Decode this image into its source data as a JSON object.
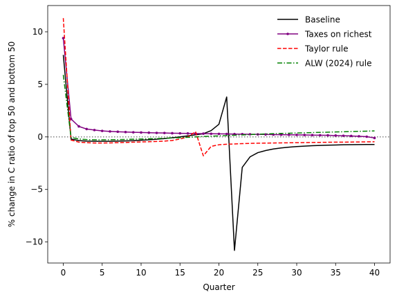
{
  "chart_data": {
    "type": "line",
    "title": "",
    "xlabel": "Quarter",
    "ylabel": "% change in C ratio of top 50 and bottom 50",
    "xlim": [
      -2,
      42
    ],
    "ylim": [
      -12,
      12.5
    ],
    "xticks": [
      0,
      5,
      10,
      15,
      20,
      25,
      30,
      35,
      40
    ],
    "yticks": [
      -10,
      -5,
      0,
      5,
      10
    ],
    "reference_line": {
      "y": 0,
      "style": "dotted",
      "color": "#808080"
    },
    "grid": false,
    "legend": {
      "position": "top-right",
      "frame": false
    },
    "series": [
      {
        "name": "Baseline",
        "color": "#000000",
        "dash": "solid",
        "marker": "none",
        "x": [
          0,
          1,
          2,
          3,
          4,
          5,
          6,
          7,
          8,
          9,
          10,
          11,
          12,
          13,
          14,
          15,
          16,
          17,
          18,
          19,
          20,
          21,
          22,
          23,
          24,
          25,
          26,
          27,
          28,
          29,
          30,
          31,
          32,
          33,
          34,
          35,
          36,
          37,
          38,
          39,
          40
        ],
        "y": [
          7.8,
          -0.2,
          -0.35,
          -0.4,
          -0.42,
          -0.42,
          -0.42,
          -0.4,
          -0.38,
          -0.36,
          -0.32,
          -0.28,
          -0.22,
          -0.16,
          -0.08,
          0.0,
          0.1,
          0.2,
          0.3,
          0.6,
          1.2,
          3.8,
          -10.8,
          -2.9,
          -1.9,
          -1.5,
          -1.3,
          -1.15,
          -1.05,
          -0.98,
          -0.92,
          -0.88,
          -0.84,
          -0.81,
          -0.79,
          -0.77,
          -0.75,
          -0.74,
          -0.73,
          -0.72,
          -0.72
        ]
      },
      {
        "name": "Taxes on richest",
        "color": "#800080",
        "dash": "solid",
        "marker": "dot",
        "x": [
          0,
          1,
          2,
          3,
          4,
          5,
          6,
          7,
          8,
          9,
          10,
          11,
          12,
          13,
          14,
          15,
          16,
          17,
          18,
          19,
          20,
          21,
          22,
          23,
          24,
          25,
          26,
          27,
          28,
          29,
          30,
          31,
          32,
          33,
          34,
          35,
          36,
          37,
          38,
          39,
          40
        ],
        "y": [
          9.4,
          1.7,
          1.0,
          0.75,
          0.65,
          0.57,
          0.52,
          0.49,
          0.46,
          0.44,
          0.42,
          0.4,
          0.38,
          0.37,
          0.35,
          0.34,
          0.33,
          0.32,
          0.31,
          0.3,
          0.29,
          0.28,
          0.27,
          0.26,
          0.25,
          0.24,
          0.23,
          0.22,
          0.21,
          0.2,
          0.19,
          0.18,
          0.17,
          0.16,
          0.15,
          0.13,
          0.11,
          0.09,
          0.06,
          0.02,
          -0.1
        ]
      },
      {
        "name": "Taylor rule",
        "color": "#ff0000",
        "dash": "dashed",
        "marker": "none",
        "x": [
          0,
          1,
          2,
          3,
          4,
          5,
          6,
          7,
          8,
          9,
          10,
          11,
          12,
          13,
          14,
          15,
          16,
          17,
          18,
          19,
          20,
          21,
          22,
          23,
          24,
          25,
          26,
          27,
          28,
          29,
          30,
          31,
          32,
          33,
          34,
          35,
          36,
          37,
          38,
          39,
          40
        ],
        "y": [
          11.3,
          -0.3,
          -0.5,
          -0.55,
          -0.58,
          -0.58,
          -0.57,
          -0.55,
          -0.53,
          -0.5,
          -0.48,
          -0.46,
          -0.43,
          -0.4,
          -0.34,
          -0.2,
          0.0,
          0.5,
          -1.8,
          -0.9,
          -0.75,
          -0.7,
          -0.67,
          -0.64,
          -0.62,
          -0.6,
          -0.59,
          -0.58,
          -0.57,
          -0.56,
          -0.55,
          -0.54,
          -0.53,
          -0.52,
          -0.51,
          -0.5,
          -0.5,
          -0.49,
          -0.48,
          -0.47,
          -0.46
        ]
      },
      {
        "name": "ALW (2024) rule",
        "color": "#008000",
        "dash": "dashdot",
        "marker": "none",
        "x": [
          0,
          1,
          2,
          3,
          4,
          5,
          6,
          7,
          8,
          9,
          10,
          11,
          12,
          13,
          14,
          15,
          16,
          17,
          18,
          19,
          20,
          21,
          22,
          23,
          24,
          25,
          26,
          27,
          28,
          29,
          30,
          31,
          32,
          33,
          34,
          35,
          36,
          37,
          38,
          39,
          40
        ],
        "y": [
          5.9,
          -0.05,
          -0.2,
          -0.25,
          -0.28,
          -0.28,
          -0.27,
          -0.26,
          -0.24,
          -0.22,
          -0.2,
          -0.18,
          -0.16,
          -0.13,
          -0.1,
          -0.07,
          -0.04,
          0.0,
          0.04,
          0.07,
          0.1,
          0.13,
          0.16,
          0.19,
          0.22,
          0.25,
          0.28,
          0.31,
          0.33,
          0.35,
          0.37,
          0.39,
          0.41,
          0.43,
          0.45,
          0.47,
          0.49,
          0.51,
          0.53,
          0.55,
          0.57
        ]
      }
    ]
  }
}
